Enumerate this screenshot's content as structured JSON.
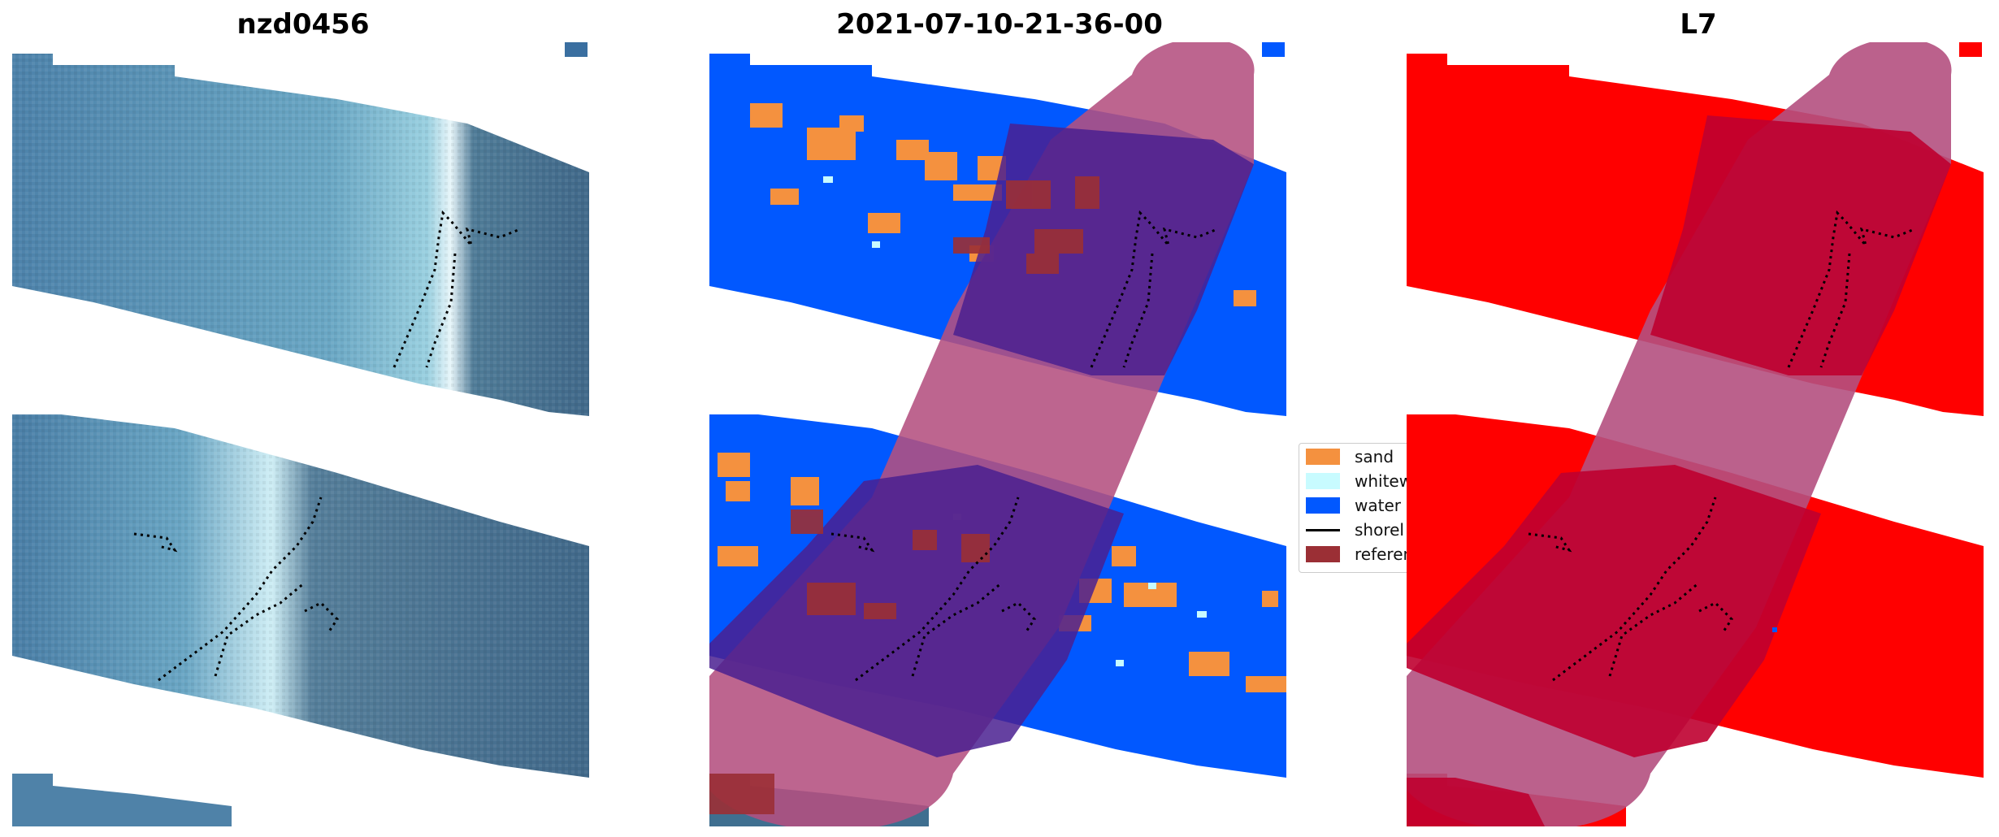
{
  "panels": [
    {
      "title": "nzd0456"
    },
    {
      "title": "2021-07-10-21-36-00"
    },
    {
      "title": "L7"
    }
  ],
  "legend": {
    "items": [
      {
        "label": "sand",
        "color": "#f4913f",
        "kind": "patch"
      },
      {
        "label": "whitew",
        "color": "#c8fbff",
        "kind": "patch"
      },
      {
        "label": "water",
        "color": "#0158ff",
        "kind": "patch"
      },
      {
        "label": "shorel",
        "color": "#000000",
        "kind": "line"
      },
      {
        "label": "referen",
        "color": "#9b2f35",
        "kind": "patch"
      }
    ]
  },
  "colors": {
    "rgb_base": "#4b7fa6",
    "rgb_light": "#7fb6cf",
    "rgb_dark": "#3f6a8c",
    "water": "#0158ff",
    "sand": "#f4913f",
    "whitewater": "#c8fbff",
    "mask_red": "#ff0000",
    "buffer_overlay": "#b4507f",
    "reference": "#9b2f35",
    "shoreline": "#000000"
  }
}
